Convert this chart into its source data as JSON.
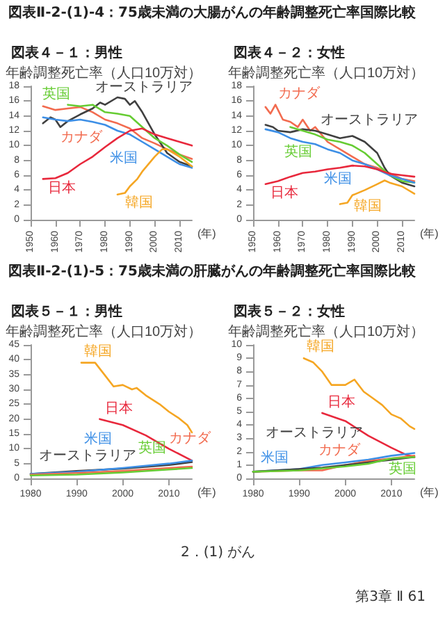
{
  "chart_data": [
    {
      "type": "line",
      "title": "図表Ⅱ-2-(1)-4：75歳未満の大腸がんの年齢調整死亡率国際比較",
      "subtitle": "図表４－１：男性",
      "xlabel": "(年)",
      "ylabel": "年齢調整死亡率（人口10万対）",
      "xlim": [
        1950,
        2015
      ],
      "xticks": [
        1950,
        1960,
        1970,
        1980,
        1990,
        2000,
        2010
      ],
      "ylim": [
        0,
        18
      ],
      "yticks": [
        0,
        2,
        4,
        6,
        8,
        10,
        12,
        14,
        16,
        18
      ],
      "series": [
        {
          "name": "カナダ",
          "color": "#f26b4f",
          "x": [
            1955,
            1960,
            1965,
            1970,
            1975,
            1980,
            1985,
            1990,
            1995,
            2000,
            2005,
            2010,
            2015
          ],
          "values": [
            15.3,
            14.8,
            15.0,
            15.2,
            14.5,
            13.5,
            13.0,
            12.3,
            11.0,
            10.3,
            9.5,
            8.8,
            8.2
          ]
        },
        {
          "name": "オーストラリア",
          "color": "#404040",
          "x": [
            1955,
            1958,
            1960,
            1962,
            1965,
            1970,
            1975,
            1978,
            1980,
            1985,
            1988,
            1990,
            1992,
            1995,
            2000,
            2005,
            2010,
            2015
          ],
          "values": [
            13.0,
            13.8,
            13.5,
            12.5,
            13.3,
            14.2,
            15.0,
            15.8,
            15.5,
            16.5,
            16.3,
            15.5,
            16.0,
            14.5,
            11.5,
            9.0,
            7.8,
            7.2
          ]
        },
        {
          "name": "英国",
          "color": "#66cc33",
          "x": [
            1965,
            1970,
            1975,
            1980,
            1985,
            1990,
            1995,
            2000,
            2005,
            2010,
            2015
          ],
          "values": [
            15.5,
            15.3,
            15.5,
            14.5,
            14.3,
            14.0,
            12.5,
            11.0,
            10.0,
            8.8,
            7.8
          ]
        },
        {
          "name": "米国",
          "color": "#3d8fe6",
          "x": [
            1955,
            1960,
            1965,
            1970,
            1975,
            1980,
            1985,
            1990,
            1995,
            2000,
            2005,
            2010,
            2015
          ],
          "values": [
            13.8,
            13.5,
            13.3,
            13.5,
            13.2,
            12.8,
            12.0,
            11.5,
            10.5,
            9.5,
            8.5,
            7.5,
            7.0
          ]
        },
        {
          "name": "日本",
          "color": "#e8283c",
          "x": [
            1955,
            1960,
            1965,
            1970,
            1975,
            1980,
            1985,
            1990,
            1995,
            2000,
            2005,
            2010,
            2015
          ],
          "values": [
            5.5,
            5.6,
            6.3,
            7.5,
            8.5,
            9.8,
            11.0,
            12.0,
            12.3,
            11.5,
            11.0,
            10.5,
            10.0
          ]
        },
        {
          "name": "韓国",
          "color": "#f5a623",
          "x": [
            1985,
            1988,
            1990,
            1993,
            1995,
            2000,
            2003,
            2005,
            2010,
            2015
          ],
          "values": [
            3.4,
            3.6,
            4.5,
            5.5,
            6.5,
            8.5,
            9.5,
            9.5,
            8.5,
            7.2
          ]
        }
      ]
    },
    {
      "type": "line",
      "subtitle": "図表４－２：女性",
      "xlabel": "(年)",
      "ylabel": "年齢調整死亡率（人口10万対）",
      "xlim": [
        1950,
        2015
      ],
      "xticks": [
        1950,
        1960,
        1970,
        1980,
        1990,
        2000,
        2010
      ],
      "ylim": [
        0,
        18
      ],
      "yticks": [
        0,
        2,
        4,
        6,
        8,
        10,
        12,
        14,
        16,
        18
      ],
      "series": [
        {
          "name": "カナダ",
          "color": "#f26b4f",
          "x": [
            1955,
            1957,
            1959,
            1962,
            1965,
            1968,
            1970,
            1973,
            1975,
            1980,
            1985,
            1990,
            1995,
            2000,
            2005,
            2010,
            2015
          ],
          "values": [
            15.2,
            14.3,
            15.5,
            13.5,
            13.2,
            12.5,
            13.5,
            12.0,
            12.5,
            10.5,
            9.5,
            8.5,
            7.5,
            7.0,
            6.3,
            5.5,
            5.2
          ]
        },
        {
          "name": "オーストラリア",
          "color": "#404040",
          "x": [
            1955,
            1958,
            1960,
            1965,
            1970,
            1975,
            1980,
            1985,
            1990,
            1995,
            2000,
            2003,
            2005,
            2010,
            2015
          ],
          "values": [
            12.8,
            12.5,
            12.0,
            11.8,
            12.2,
            12.0,
            11.5,
            11.0,
            11.3,
            10.5,
            9.0,
            7.0,
            6.0,
            5.0,
            4.5
          ]
        },
        {
          "name": "英国",
          "color": "#66cc33",
          "x": [
            1965,
            1970,
            1975,
            1980,
            1985,
            1990,
            1995,
            2000,
            2005,
            2010,
            2015
          ],
          "values": [
            12.5,
            12.0,
            11.5,
            10.8,
            10.5,
            10.0,
            9.0,
            7.5,
            6.0,
            5.2,
            5.0
          ]
        },
        {
          "name": "米国",
          "color": "#3d8fe6",
          "x": [
            1955,
            1960,
            1965,
            1970,
            1975,
            1980,
            1985,
            1990,
            1995,
            2000,
            2005,
            2010,
            2015
          ],
          "values": [
            12.2,
            11.8,
            11.0,
            10.5,
            10.2,
            9.5,
            9.0,
            8.0,
            7.5,
            6.8,
            6.0,
            5.5,
            5.0
          ]
        },
        {
          "name": "日本",
          "color": "#e8283c",
          "x": [
            1955,
            1960,
            1965,
            1970,
            1975,
            1980,
            1985,
            1990,
            1995,
            2000,
            2005,
            2010,
            2015
          ],
          "values": [
            4.8,
            5.2,
            5.8,
            6.3,
            6.5,
            6.8,
            7.0,
            7.3,
            7.2,
            6.8,
            6.2,
            6.0,
            5.8
          ]
        },
        {
          "name": "韓国",
          "color": "#f5a623",
          "x": [
            1985,
            1988,
            1990,
            1995,
            2000,
            2003,
            2005,
            2010,
            2015
          ],
          "values": [
            2.1,
            2.3,
            3.3,
            4.0,
            4.8,
            5.3,
            5.0,
            4.5,
            3.5
          ]
        }
      ]
    },
    {
      "type": "line",
      "title": "図表Ⅱ-2-(1)-5：75歳未満の肝臓がんの年齢調整死亡率国際比較",
      "subtitle": "図表５－１：男性",
      "xlabel": "(年)",
      "ylabel": "年齢調整死亡率（人口10万対）",
      "xlim": [
        1980,
        2015
      ],
      "xticks": [
        1980,
        1990,
        2000,
        2010
      ],
      "ylim": [
        0,
        45
      ],
      "yticks": [
        0,
        5,
        10,
        15,
        20,
        25,
        30,
        35,
        40,
        45
      ],
      "series": [
        {
          "name": "韓国",
          "color": "#f5a623",
          "x": [
            1991,
            1994,
            1996,
            1998,
            2000,
            2002,
            2003,
            2005,
            2008,
            2010,
            2012,
            2014,
            2015
          ],
          "values": [
            39,
            39,
            35,
            31,
            31.5,
            30,
            30.5,
            28,
            25,
            22.5,
            20.5,
            18,
            15.5
          ]
        },
        {
          "name": "日本",
          "color": "#e8283c",
          "x": [
            1995,
            2000,
            2005,
            2010,
            2015
          ],
          "values": [
            20,
            18,
            14.5,
            10,
            6
          ]
        },
        {
          "name": "オーストラリア",
          "color": "#404040",
          "x": [
            1980,
            1990,
            2000,
            2010,
            2015
          ],
          "values": [
            1.5,
            2.5,
            3.3,
            4.5,
            5.5
          ]
        },
        {
          "name": "米国",
          "color": "#3d8fe6",
          "x": [
            1980,
            1990,
            2000,
            2010,
            2015
          ],
          "values": [
            1.5,
            2.2,
            3.5,
            5,
            6
          ]
        },
        {
          "name": "カナダ",
          "color": "#f26b4f",
          "x": [
            1980,
            1990,
            2000,
            2010,
            2015
          ],
          "values": [
            1.3,
            1.8,
            2.5,
            3.5,
            4
          ]
        },
        {
          "name": "英国",
          "color": "#66cc33",
          "x": [
            1980,
            1990,
            2000,
            2010,
            2015
          ],
          "values": [
            1.0,
            1.3,
            2.0,
            3.0,
            3.5
          ]
        }
      ]
    },
    {
      "type": "line",
      "subtitle": "図表５－２：女性",
      "xlabel": "(年)",
      "ylabel": "年齢調整死亡率（人口10万対）",
      "xlim": [
        1980,
        2015
      ],
      "xticks": [
        1980,
        1990,
        2000,
        2010
      ],
      "ylim": [
        0,
        10
      ],
      "yticks": [
        0,
        1,
        2,
        3,
        4,
        5,
        6,
        7,
        8,
        9,
        10
      ],
      "annotations": [
        "2．(1) がん",
        "第3章 Ⅱ 61"
      ],
      "series": [
        {
          "name": "韓国",
          "color": "#f5a623",
          "x": [
            1991,
            1993,
            1995,
            1997,
            2000,
            2002,
            2004,
            2006,
            2008,
            2010,
            2012,
            2014,
            2015
          ],
          "values": [
            9.0,
            8.7,
            8.0,
            7.0,
            7.0,
            7.4,
            6.5,
            6.0,
            5.5,
            4.8,
            4.5,
            3.9,
            3.7
          ]
        },
        {
          "name": "日本",
          "color": "#e8283c",
          "x": [
            1995,
            2000,
            2005,
            2010,
            2013,
            2015
          ],
          "values": [
            4.9,
            4.3,
            3.2,
            2.3,
            1.8,
            1.6
          ]
        },
        {
          "name": "米国",
          "color": "#3d8fe6",
          "x": [
            1980,
            1990,
            1995,
            2000,
            2005,
            2010,
            2015
          ],
          "values": [
            0.5,
            0.7,
            1.0,
            1.2,
            1.4,
            1.7,
            1.9
          ]
        },
        {
          "name": "カナダ",
          "color": "#f26b4f",
          "x": [
            1980,
            1990,
            1995,
            2000,
            2005,
            2010,
            2015
          ],
          "values": [
            0.5,
            0.6,
            0.6,
            1.0,
            1.3,
            1.5,
            1.7
          ]
        },
        {
          "name": "オーストラリア",
          "color": "#404040",
          "x": [
            1980,
            1990,
            1995,
            2000,
            2005,
            2010,
            2015
          ],
          "values": [
            0.5,
            0.7,
            0.8,
            1.0,
            1.2,
            1.4,
            1.6
          ]
        },
        {
          "name": "英国",
          "color": "#66cc33",
          "x": [
            1980,
            1990,
            2000,
            2005,
            2010,
            2015
          ],
          "values": [
            0.5,
            0.6,
            0.9,
            1.1,
            1.5,
            1.6
          ]
        }
      ]
    }
  ]
}
